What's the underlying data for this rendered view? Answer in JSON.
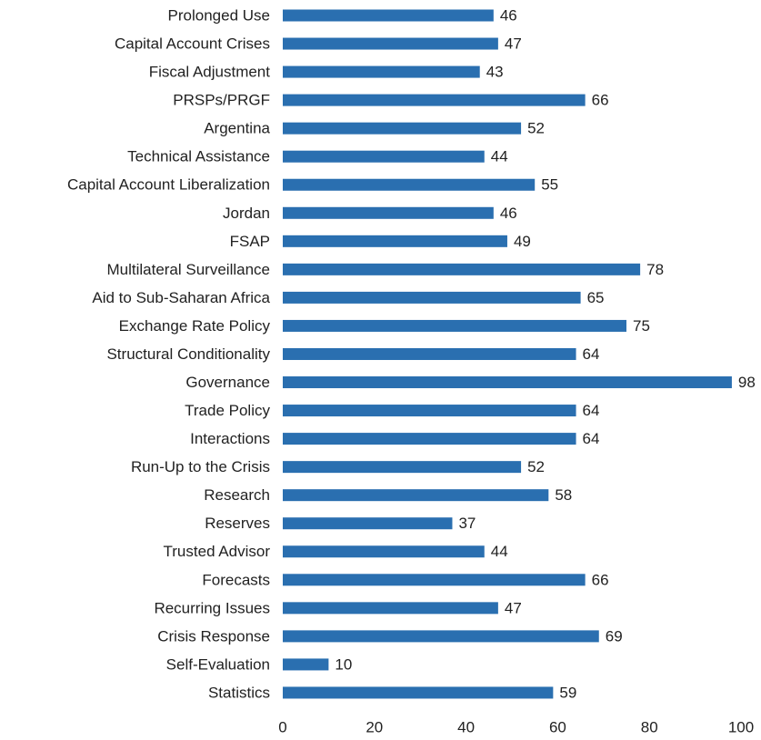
{
  "chart_data": {
    "type": "barh",
    "categories": [
      "Prolonged Use",
      "Capital Account Crises",
      "Fiscal Adjustment",
      "PRSPs/PRGF",
      "Argentina",
      "Technical Assistance",
      "Capital Account Liberalization",
      "Jordan",
      "FSAP",
      "Multilateral Surveillance",
      "Aid to Sub-Saharan Africa",
      "Exchange Rate Policy",
      "Structural Conditionality",
      "Governance",
      "Trade Policy",
      "Interactions",
      "Run-Up to the Crisis",
      "Research",
      "Reserves",
      "Trusted Advisor",
      "Forecasts",
      "Recurring Issues",
      "Crisis Response",
      "Self-Evaluation",
      "Statistics"
    ],
    "values": [
      46,
      47,
      43,
      66,
      52,
      44,
      55,
      46,
      49,
      78,
      65,
      75,
      64,
      98,
      64,
      64,
      52,
      58,
      37,
      44,
      66,
      47,
      69,
      10,
      59
    ],
    "color": "#2a6fb0",
    "xlim": [
      0,
      100
    ],
    "xticks": [
      0,
      20,
      40,
      60,
      80,
      100
    ],
    "grid": false
  }
}
